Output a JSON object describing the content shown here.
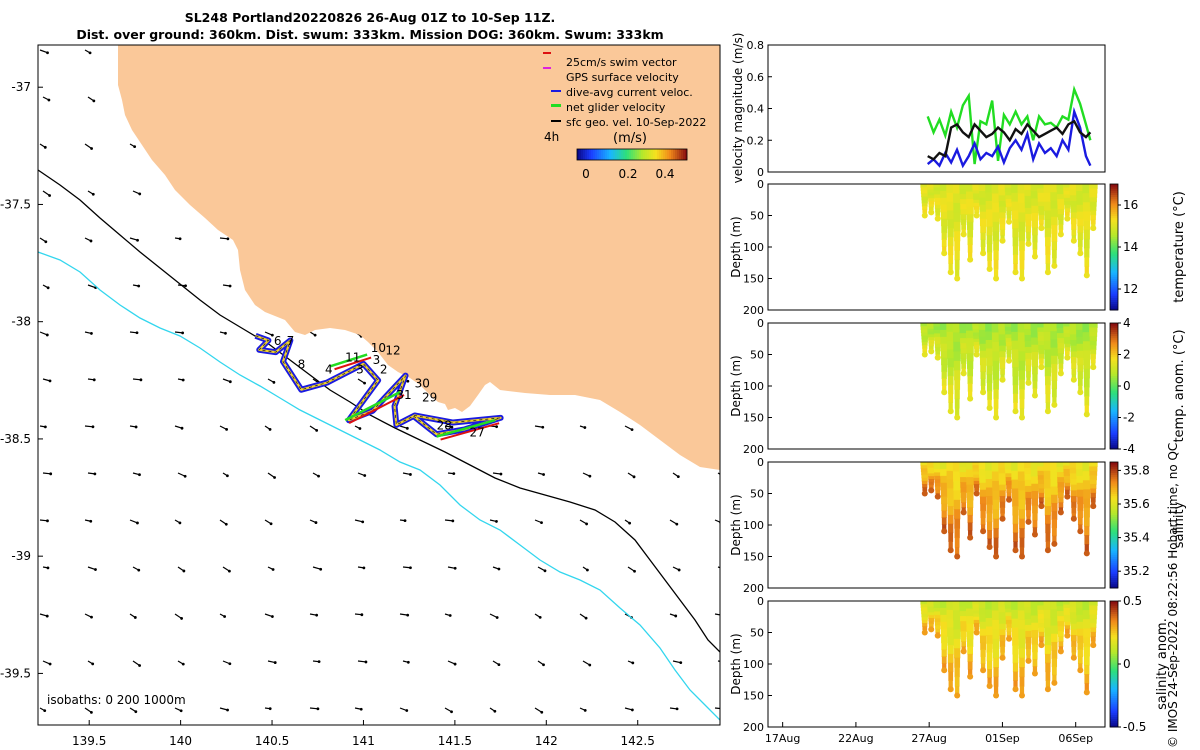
{
  "header": {
    "line1": "SL248 Portland20220826 26-Aug 01Z to 10-Sep 11Z.",
    "line2": "Dist. over ground: 360km. Dist. swum: 333km. Mission DOG: 360km. Swum: 333km"
  },
  "side_label": "© IMOS 24-Sep-2022 08:22:56 Hobart time, no QC",
  "colors": {
    "land": "#FAC899",
    "isobath_200": "#000000",
    "isobath_1000": "#33D6EE",
    "track_line": "#1A1AE0",
    "net_velocity": "#22DD22",
    "swim_vector": "#DD1111",
    "gps_velocity": "#DD22DD",
    "sfc_geo": "#000000"
  },
  "chart_data": [
    {
      "id": "map",
      "type": "scatter",
      "title": "Glider track map",
      "xlabel": "",
      "ylabel": "",
      "xlim": [
        139.22,
        142.95
      ],
      "ylim": [
        -39.72,
        -36.82
      ],
      "xticks": [
        "139.5",
        "140",
        "140.5",
        "141",
        "141.5",
        "142",
        "142.5"
      ],
      "xtick_values": [
        139.5,
        140,
        140.5,
        141,
        141.5,
        142,
        142.5
      ],
      "yticks": [
        "-37",
        "-37.5",
        "-38",
        "-38.5",
        "-39",
        "-39.5"
      ],
      "ytick_values": [
        -37,
        -37.5,
        -38,
        -38.5,
        -39,
        -39.5
      ],
      "legend": {
        "position": "top-right",
        "entries": [
          "25cm/s swim vector",
          "GPS surface velocity",
          "dive-avg current veloc.",
          "net glider velocity",
          "sfc geo. vel. 10-Sep-2022"
        ]
      },
      "time_step_label": "4h",
      "colorbar": {
        "label": "(m/s)",
        "ticks": [
          "0",
          "0.2",
          "0.4"
        ],
        "range": [
          0,
          0.5
        ]
      },
      "isobath_note": "isobaths: 0   200  1000m",
      "waypoints": [
        {
          "label": "6",
          "lon": 140.51,
          "lat": -38.1
        },
        {
          "label": "7",
          "lon": 140.58,
          "lat": -38.1
        },
        {
          "label": "8",
          "lon": 140.64,
          "lat": -38.2
        },
        {
          "label": "4",
          "lon": 140.79,
          "lat": -38.22
        },
        {
          "label": "11",
          "lon": 140.9,
          "lat": -38.17
        },
        {
          "label": "10",
          "lon": 141.04,
          "lat": -38.13
        },
        {
          "label": "12",
          "lon": 141.12,
          "lat": -38.14
        },
        {
          "label": "3",
          "lon": 141.05,
          "lat": -38.18
        },
        {
          "label": "3",
          "lon": 140.96,
          "lat": -38.22
        },
        {
          "label": "2",
          "lon": 141.09,
          "lat": -38.22
        },
        {
          "label": "30",
          "lon": 141.28,
          "lat": -38.28
        },
        {
          "label": "31",
          "lon": 141.18,
          "lat": -38.33
        },
        {
          "label": "29",
          "lon": 141.32,
          "lat": -38.34
        },
        {
          "label": "28",
          "lon": 141.4,
          "lat": -38.46
        },
        {
          "label": "27",
          "lon": 141.58,
          "lat": -38.49
        }
      ],
      "track": [
        [
          140.41,
          -38.06
        ],
        [
          140.48,
          -38.08
        ],
        [
          140.43,
          -38.12
        ],
        [
          140.52,
          -38.13
        ],
        [
          140.6,
          -38.08
        ],
        [
          140.56,
          -38.17
        ],
        [
          140.66,
          -38.29
        ],
        [
          140.8,
          -38.26
        ],
        [
          141.0,
          -38.18
        ],
        [
          141.08,
          -38.25
        ],
        [
          140.92,
          -38.42
        ],
        [
          141.05,
          -38.38
        ],
        [
          141.23,
          -38.23
        ],
        [
          141.17,
          -38.36
        ],
        [
          141.18,
          -38.44
        ],
        [
          141.28,
          -38.4
        ],
        [
          141.49,
          -38.43
        ],
        [
          141.75,
          -38.41
        ],
        [
          141.55,
          -38.46
        ],
        [
          141.4,
          -38.48
        ],
        [
          141.27,
          -38.4
        ]
      ],
      "net_velocity_segments": [
        [
          [
            140.82,
            -38.19
          ],
          [
            141.02,
            -38.14
          ]
        ],
        [
          [
            140.9,
            -38.42
          ],
          [
            141.2,
            -38.3
          ]
        ],
        [
          [
            141.4,
            -38.49
          ],
          [
            141.72,
            -38.42
          ]
        ]
      ]
    },
    {
      "id": "velocity-panel",
      "type": "line",
      "ylabel": "velocity magnitude (m/s)",
      "ylim": [
        0,
        0.8
      ],
      "yticks": [
        "0",
        "0.2",
        "0.4",
        "0.6",
        "0.8"
      ],
      "ytick_values": [
        0,
        0.2,
        0.4,
        0.6,
        0.8
      ],
      "xlim": [
        -1,
        22
      ],
      "series": [
        {
          "name": "net glider velocity",
          "color": "#22DD22",
          "x": [
            9.9,
            10.3,
            10.7,
            11.1,
            11.5,
            11.9,
            12.3,
            12.7,
            13.1,
            13.5,
            13.9,
            14.3,
            14.7,
            15.1,
            15.5,
            15.9,
            16.3,
            16.7,
            17.1,
            17.5,
            17.9,
            18.3,
            18.7,
            19.1,
            19.5,
            19.9,
            20.3,
            20.7,
            21.0
          ],
          "values": [
            0.35,
            0.25,
            0.33,
            0.23,
            0.38,
            0.28,
            0.42,
            0.48,
            0.05,
            0.32,
            0.3,
            0.45,
            0.07,
            0.36,
            0.3,
            0.38,
            0.3,
            0.35,
            0.2,
            0.35,
            0.3,
            0.31,
            0.28,
            0.35,
            0.33,
            0.52,
            0.43,
            0.3,
            0.2
          ]
        },
        {
          "name": "dive-avg current veloc.",
          "color": "#1A1AE0",
          "x": [
            9.9,
            10.3,
            10.7,
            11.1,
            11.5,
            11.9,
            12.3,
            12.7,
            13.1,
            13.5,
            13.9,
            14.3,
            14.7,
            15.1,
            15.5,
            15.9,
            16.3,
            16.7,
            17.1,
            17.5,
            17.9,
            18.3,
            18.7,
            19.1,
            19.5,
            19.9,
            20.3,
            20.7,
            21.0
          ],
          "values": [
            0.05,
            0.08,
            0.04,
            0.12,
            0.06,
            0.14,
            0.04,
            0.1,
            0.18,
            0.08,
            0.12,
            0.1,
            0.16,
            0.06,
            0.15,
            0.2,
            0.14,
            0.24,
            0.08,
            0.18,
            0.12,
            0.15,
            0.1,
            0.2,
            0.14,
            0.38,
            0.28,
            0.1,
            0.04
          ]
        },
        {
          "name": "sfc geo. vel. 10-Sep-2022",
          "color": "#111111",
          "x": [
            9.9,
            10.3,
            10.7,
            11.1,
            11.5,
            11.9,
            12.3,
            12.7,
            13.1,
            13.5,
            13.9,
            14.3,
            14.7,
            15.1,
            15.5,
            15.9,
            16.3,
            16.7,
            17.1,
            17.5,
            17.9,
            18.3,
            18.7,
            19.1,
            19.5,
            19.9,
            20.3,
            20.7,
            21.0
          ],
          "values": [
            0.1,
            0.08,
            0.12,
            0.1,
            0.28,
            0.3,
            0.25,
            0.22,
            0.3,
            0.26,
            0.22,
            0.24,
            0.28,
            0.25,
            0.2,
            0.27,
            0.24,
            0.3,
            0.26,
            0.22,
            0.24,
            0.26,
            0.28,
            0.24,
            0.3,
            0.32,
            0.25,
            0.22,
            0.25
          ]
        }
      ]
    },
    {
      "id": "temperature-panel",
      "type": "heatmap",
      "ylabel": "Depth (m)",
      "ylim": [
        0,
        200
      ],
      "yticks": [
        "0",
        "50",
        "100",
        "150",
        "200"
      ],
      "ytick_values": [
        0,
        50,
        100,
        150,
        200
      ],
      "colorbar_label": "temperature (°C)",
      "colorbar_ticks": [
        "12",
        "14",
        "16"
      ],
      "colorbar_tick_values": [
        12,
        14,
        16
      ],
      "crange": [
        11,
        17
      ],
      "dive_max_depths": [
        50,
        45,
        55,
        110,
        140,
        150,
        80,
        120,
        50,
        110,
        135,
        150,
        90,
        60,
        140,
        150,
        95,
        115,
        70,
        140,
        130,
        80,
        55,
        90,
        110,
        145,
        70
      ],
      "surface_value": 15.0,
      "deep_value": 15.2
    },
    {
      "id": "temp-anomaly-panel",
      "type": "heatmap",
      "ylabel": "Depth (m)",
      "ylim": [
        0,
        200
      ],
      "yticks": [
        "0",
        "50",
        "100",
        "150",
        "200"
      ],
      "ytick_values": [
        0,
        50,
        100,
        150,
        200
      ],
      "colorbar_label": "temp. anom. (°C)",
      "colorbar_ticks": [
        "-4",
        "-2",
        "0",
        "2",
        "4"
      ],
      "colorbar_tick_values": [
        -4,
        -2,
        0,
        2,
        4
      ],
      "crange": [
        -4,
        4
      ],
      "dive_max_depths": [
        50,
        45,
        55,
        110,
        140,
        150,
        80,
        120,
        50,
        110,
        135,
        150,
        90,
        60,
        140,
        150,
        95,
        115,
        70,
        140,
        130,
        80,
        55,
        90,
        110,
        145,
        70
      ],
      "surface_value": 0.6,
      "deep_value": 1.5
    },
    {
      "id": "salinity-panel",
      "type": "heatmap",
      "ylabel": "Depth (m)",
      "ylim": [
        0,
        200
      ],
      "yticks": [
        "0",
        "50",
        "100",
        "150",
        "200"
      ],
      "ytick_values": [
        0,
        50,
        100,
        150,
        200
      ],
      "colorbar_label": "salinity",
      "colorbar_ticks": [
        "35.2",
        "35.4",
        "35.6",
        "35.8"
      ],
      "colorbar_tick_values": [
        35.2,
        35.4,
        35.6,
        35.8
      ],
      "crange": [
        35.1,
        35.85
      ],
      "dive_max_depths": [
        50,
        45,
        55,
        110,
        140,
        150,
        80,
        120,
        50,
        110,
        135,
        150,
        90,
        60,
        140,
        150,
        95,
        115,
        70,
        140,
        130,
        80,
        55,
        90,
        110,
        145,
        70
      ],
      "surface_value": 35.62,
      "deep_value": 35.78
    },
    {
      "id": "salinity-anomaly-panel",
      "type": "heatmap",
      "ylabel": "Depth (m)",
      "ylim": [
        0,
        200
      ],
      "yticks": [
        "0",
        "50",
        "100",
        "150",
        "200"
      ],
      "ytick_values": [
        0,
        50,
        100,
        150,
        200
      ],
      "colorbar_label": "salinity anom.",
      "colorbar_ticks": [
        "-0.5",
        "0",
        "0.5"
      ],
      "colorbar_tick_values": [
        -0.5,
        0,
        0.5
      ],
      "crange": [
        -0.5,
        0.5
      ],
      "dive_max_depths": [
        50,
        45,
        55,
        110,
        140,
        150,
        80,
        120,
        50,
        110,
        135,
        150,
        90,
        60,
        140,
        150,
        95,
        115,
        70,
        140,
        130,
        80,
        55,
        90,
        110,
        145,
        70
      ],
      "surface_value": 0.12,
      "deep_value": 0.32
    },
    {
      "id": "time-axis",
      "type": "line",
      "xticks": [
        "17Aug",
        "22Aug",
        "27Aug",
        "01Sep",
        "06Sep"
      ],
      "xtick_values": [
        0,
        5,
        10,
        15,
        20
      ],
      "xlim": [
        -1,
        22
      ]
    }
  ]
}
